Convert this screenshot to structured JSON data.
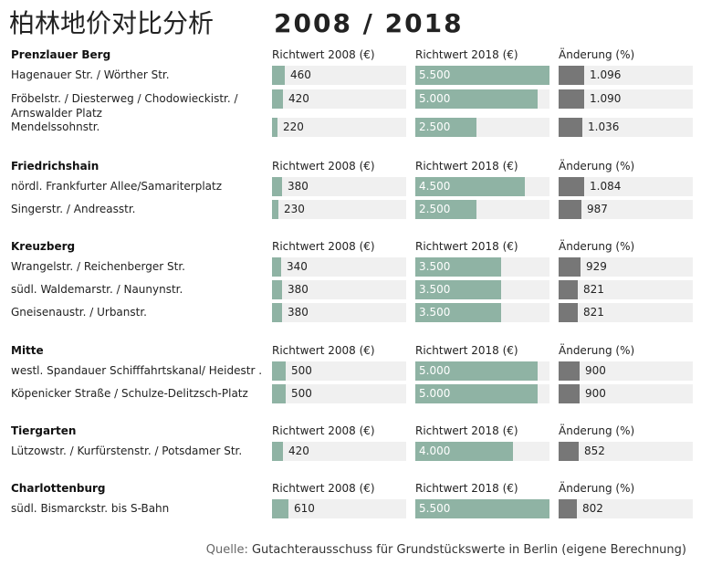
{
  "header": {
    "title": "柏林地价对比分析",
    "years": "2008 / 2018"
  },
  "colors": {
    "bar_2008": "#8fb3a4",
    "bar_2018": "#8fb3a4",
    "bar_change": "#777777",
    "cell_bg": "#f0f0f0",
    "label_2018": "#ffffff"
  },
  "chart_data": {
    "type": "bar",
    "columns": [
      "Richtwert 2008 (€)",
      "Richtwert 2018 (€)",
      "Änderung (%)"
    ],
    "scales": {
      "richtwert_2008_max": 5500,
      "richtwert_2018_max": 5500,
      "aenderung_max": 1096
    },
    "groups": [
      {
        "district": "Prenzlauer Berg",
        "rows": [
          {
            "location": "Hagenauer Str. / Wörther Str.",
            "v2008": 460,
            "v2008_label": "460",
            "v2018": 5500,
            "v2018_label": "5.500",
            "change": 1096,
            "change_label": "1.096"
          },
          {
            "location": "Fröbelstr. / Diesterweg / Chodowieckistr. / Arnswalder Platz",
            "v2008": 420,
            "v2008_label": "420",
            "v2018": 5000,
            "v2018_label": "5.000",
            "change": 1090,
            "change_label": "1.090"
          },
          {
            "location": "Mendelssohnstr.",
            "v2008": 220,
            "v2008_label": "220",
            "v2018": 2500,
            "v2018_label": "2.500",
            "change": 1036,
            "change_label": "1.036"
          }
        ]
      },
      {
        "district": "Friedrichshain",
        "rows": [
          {
            "location": "nördl. Frankfurter Allee/Samariterplatz",
            "v2008": 380,
            "v2008_label": "380",
            "v2018": 4500,
            "v2018_label": "4.500",
            "change": 1084,
            "change_label": "1.084"
          },
          {
            "location": "Singerstr. / Andreasstr.",
            "v2008": 230,
            "v2008_label": "230",
            "v2018": 2500,
            "v2018_label": "2.500",
            "change": 987,
            "change_label": "987"
          }
        ]
      },
      {
        "district": "Kreuzberg",
        "rows": [
          {
            "location": "Wrangelstr. / Reichenberger Str.",
            "v2008": 340,
            "v2008_label": "340",
            "v2018": 3500,
            "v2018_label": "3.500",
            "change": 929,
            "change_label": "929"
          },
          {
            "location": "südl. Waldemarstr. / Naunynstr.",
            "v2008": 380,
            "v2008_label": "380",
            "v2018": 3500,
            "v2018_label": "3.500",
            "change": 821,
            "change_label": "821"
          },
          {
            "location": "Gneisenaustr. / Urbanstr.",
            "v2008": 380,
            "v2008_label": "380",
            "v2018": 3500,
            "v2018_label": "3.500",
            "change": 821,
            "change_label": "821"
          }
        ]
      },
      {
        "district": "Mitte",
        "rows": [
          {
            "location": "westl. Spandauer Schifffahrtskanal/ Heidestr .",
            "v2008": 500,
            "v2008_label": "500",
            "v2018": 5000,
            "v2018_label": "5.000",
            "change": 900,
            "change_label": "900"
          },
          {
            "location": "Köpenicker Straße / Schulze-Delitzsch-Platz",
            "v2008": 500,
            "v2008_label": "500",
            "v2018": 5000,
            "v2018_label": "5.000",
            "change": 900,
            "change_label": "900"
          }
        ]
      },
      {
        "district": "Tiergarten",
        "rows": [
          {
            "location": "Lützowstr. / Kurfürstenstr. / Potsdamer Str.",
            "v2008": 420,
            "v2008_label": "420",
            "v2018": 4000,
            "v2018_label": "4.000",
            "change": 852,
            "change_label": "852"
          }
        ]
      },
      {
        "district": "Charlottenburg",
        "rows": [
          {
            "location": "südl. Bismarckstr. bis S-Bahn",
            "v2008": 610,
            "v2008_label": "610",
            "v2018": 5500,
            "v2018_label": "5.500",
            "change": 802,
            "change_label": "802"
          }
        ]
      }
    ]
  },
  "source": {
    "prefix": "Quelle:",
    "text": "Gutachterausschuss für Grundstückswerte in Berlin (eigene Berechnung)"
  }
}
